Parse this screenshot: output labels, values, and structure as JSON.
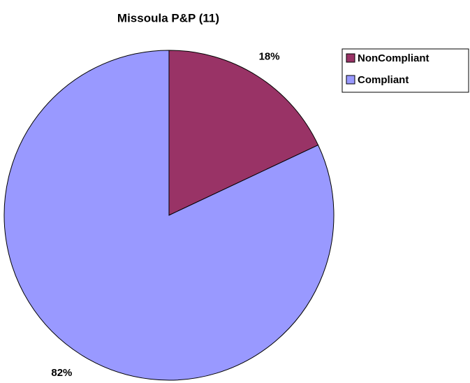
{
  "chart_data": {
    "type": "pie",
    "title": "Missoula P&P (11)",
    "categories": [
      "NonCompliant",
      "Compliant"
    ],
    "values": [
      18,
      82
    ],
    "value_labels": [
      "18%",
      "82%"
    ],
    "colors": [
      "#993366",
      "#9999ff"
    ],
    "legend": "right"
  }
}
